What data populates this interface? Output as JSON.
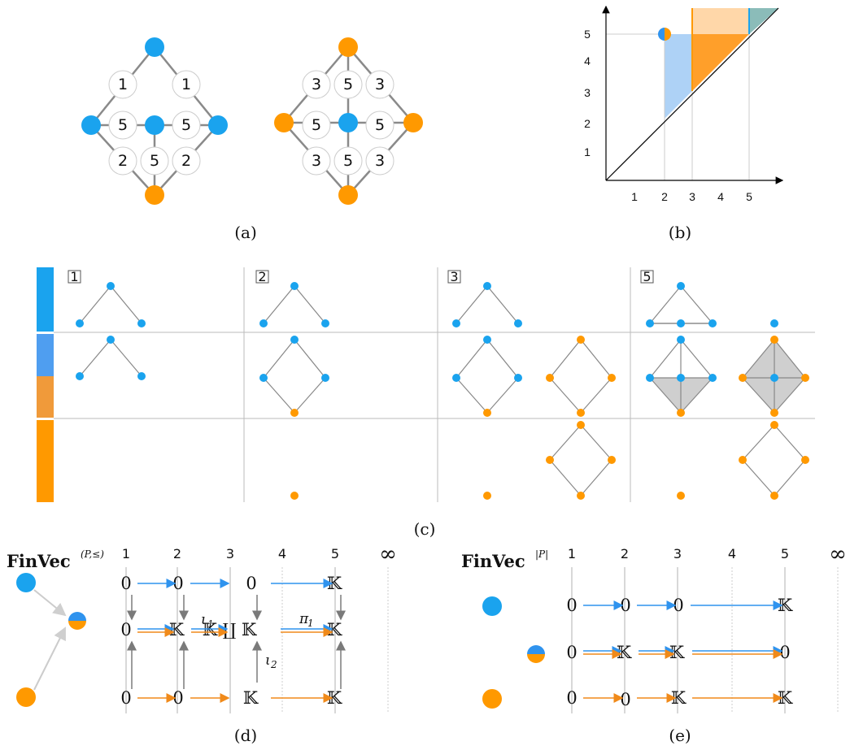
{
  "colors": {
    "blue": "#1aa3ee",
    "orange": "#ff9900",
    "gray": "#8a8a8a",
    "lightblue": "#aed2f6",
    "lightorange": "#ffd3a0"
  },
  "captions": {
    "a": "(a)",
    "b": "(b)",
    "c": "(c)",
    "d": "(d)",
    "e": "(e)"
  },
  "panel_a": {
    "left_labels": [
      "1",
      "1",
      "5",
      "5",
      "5",
      "2",
      "2"
    ],
    "right_labels": [
      "3",
      "5",
      "3",
      "5",
      "5",
      "3",
      "5",
      "3"
    ]
  },
  "panel_b": {
    "x_ticks": [
      "1",
      "2",
      "3",
      "4",
      "5"
    ],
    "y_ticks": [
      "1",
      "2",
      "3",
      "4",
      "5"
    ]
  },
  "panel_c": {
    "column_headers": [
      "1",
      "2",
      "3",
      "5"
    ]
  },
  "panel_d": {
    "title": "FinVec",
    "title_sup": "(P,≤)",
    "headers": [
      "1",
      "2",
      "3",
      "4",
      "5",
      "∞"
    ],
    "row1": [
      "0",
      "0",
      "0",
      "𝕂"
    ],
    "row2": [
      "0",
      "𝕂",
      "𝕂 ∐ 𝕂",
      "𝕂"
    ],
    "row3": [
      "0",
      "0",
      "𝕂",
      "𝕂"
    ],
    "iota1": "ι",
    "iota1_sub": "1",
    "iota2": "ι",
    "iota2_sub": "2",
    "pi1": "π",
    "pi1_sub": "1"
  },
  "panel_e": {
    "title": "FinVec",
    "title_sup": "|P|",
    "headers": [
      "1",
      "2",
      "3",
      "4",
      "5",
      "∞"
    ],
    "row1": [
      "0",
      "0",
      "0",
      "𝕂"
    ],
    "row2": [
      "0",
      "𝕂",
      "𝕂",
      "0"
    ],
    "row3": [
      "0",
      "0",
      "𝕂",
      "𝕂"
    ]
  }
}
